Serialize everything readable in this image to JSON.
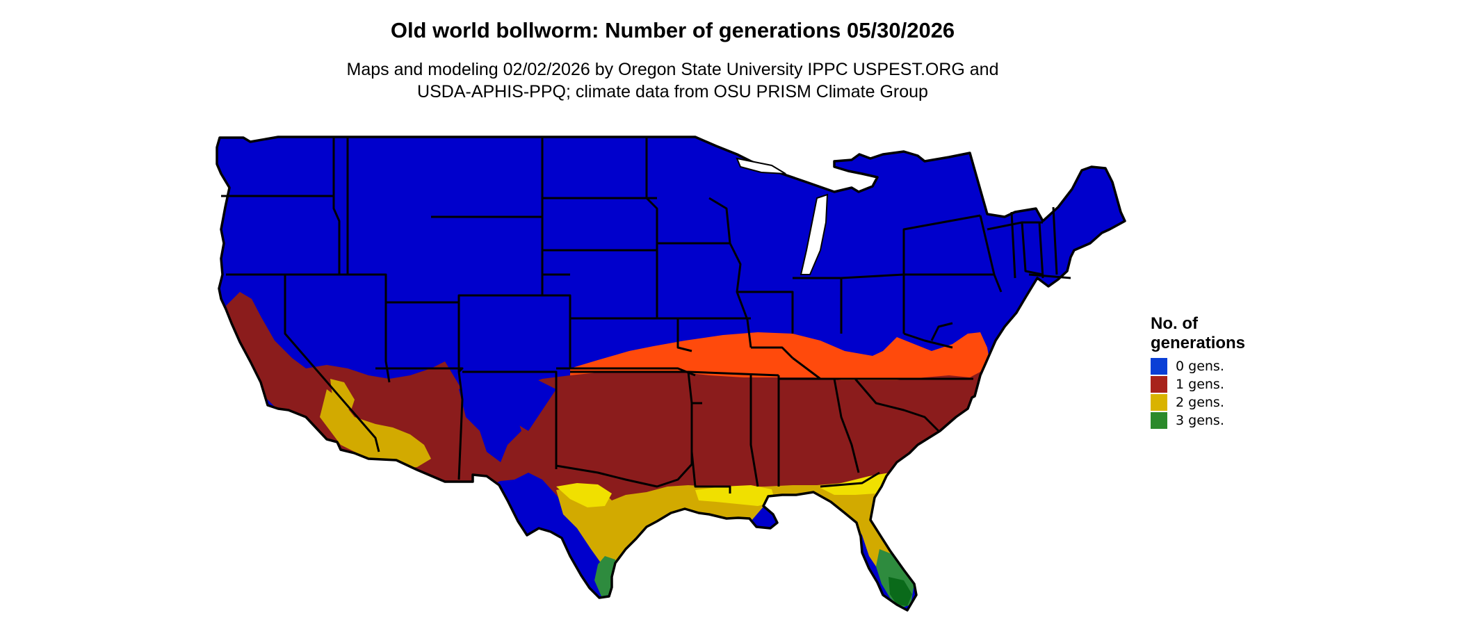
{
  "title": "Old world bollworm: Number of generations 05/30/2026",
  "subtitle": {
    "line1": "Maps and modeling 02/02/2026 by Oregon State University IPPC USPEST.ORG and",
    "line2": "USDA-APHIS-PPQ; climate data from OSU PRISM Climate Group"
  },
  "legend": {
    "title_line1": "No. of",
    "title_line2": "generations",
    "items": [
      {
        "label": "0 gens.",
        "color": "#0a3fd6"
      },
      {
        "label": "1 gens.",
        "color": "#a8231b"
      },
      {
        "label": "2 gens.",
        "color": "#d9b300"
      },
      {
        "label": "3 gens.",
        "color": "#2b8a2b"
      }
    ]
  },
  "map_colors": {
    "zero_gens": "#0000cc",
    "one_gen_early": "#ff4a0c",
    "one_gen": "#8b1c1c",
    "two_gens": "#d2aa00",
    "two_gens_bright": "#f0e000",
    "three_gens": "#2e8b3e",
    "three_gens_dark": "#0a6a1a",
    "state_borders": "#000000"
  }
}
